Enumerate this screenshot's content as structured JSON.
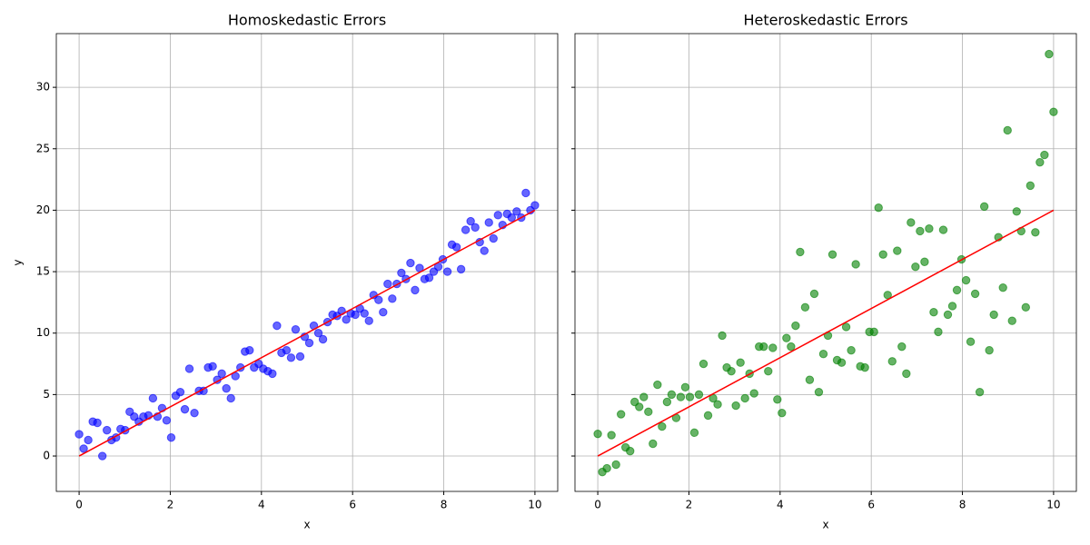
{
  "chart_data": [
    {
      "type": "scatter",
      "title": "Homoskedastic Errors",
      "xlabel": "x",
      "ylabel": "y",
      "xlim": [
        -0.5,
        10.5
      ],
      "ylim": [
        -2.88,
        34.37
      ],
      "xticks": [
        0,
        2,
        4,
        6,
        8,
        10
      ],
      "yticks": [
        0,
        5,
        10,
        15,
        20,
        25,
        30
      ],
      "grid": true,
      "ytick_labels": true,
      "points": {
        "color": "#0000ff",
        "alpha": 0.6,
        "x": [
          0,
          0.1,
          0.2,
          0.3,
          0.4,
          0.51,
          0.61,
          0.71,
          0.81,
          0.91,
          1.01,
          1.11,
          1.21,
          1.31,
          1.41,
          1.52,
          1.62,
          1.72,
          1.82,
          1.92,
          2.02,
          2.12,
          2.22,
          2.32,
          2.42,
          2.53,
          2.63,
          2.73,
          2.83,
          2.93,
          3.03,
          3.13,
          3.23,
          3.33,
          3.43,
          3.54,
          3.64,
          3.74,
          3.84,
          3.94,
          4.04,
          4.14,
          4.24,
          4.34,
          4.44,
          4.55,
          4.65,
          4.75,
          4.85,
          4.95,
          5.05,
          5.15,
          5.25,
          5.35,
          5.45,
          5.56,
          5.66,
          5.76,
          5.86,
          5.96,
          6.06,
          6.16,
          6.26,
          6.36,
          6.46,
          6.57,
          6.67,
          6.77,
          6.87,
          6.97,
          7.07,
          7.17,
          7.27,
          7.37,
          7.47,
          7.58,
          7.68,
          7.78,
          7.88,
          7.98,
          8.08,
          8.18,
          8.28,
          8.38,
          8.48,
          8.59,
          8.69,
          8.79,
          8.89,
          8.99,
          9.09,
          9.19,
          9.29,
          9.39,
          9.49,
          9.6,
          9.7,
          9.8,
          9.9,
          10
        ],
        "y": [
          1.77,
          0.6,
          1.3,
          2.8,
          2.7,
          0.0,
          2.1,
          1.3,
          1.5,
          2.2,
          2.1,
          3.6,
          3.2,
          2.8,
          3.2,
          3.3,
          4.7,
          3.2,
          3.9,
          2.9,
          1.5,
          4.9,
          5.2,
          3.8,
          7.1,
          3.5,
          5.3,
          5.3,
          7.2,
          7.3,
          6.2,
          6.7,
          5.5,
          4.7,
          6.5,
          7.2,
          8.5,
          8.6,
          7.2,
          7.5,
          7.1,
          6.9,
          6.7,
          10.6,
          8.4,
          8.6,
          8.0,
          10.3,
          8.1,
          9.7,
          9.2,
          10.6,
          10.0,
          9.5,
          10.9,
          11.5,
          11.4,
          11.8,
          11.1,
          11.6,
          11.5,
          12.0,
          11.6,
          11.0,
          13.1,
          12.7,
          11.7,
          14.0,
          12.8,
          14.0,
          14.9,
          14.4,
          15.7,
          13.5,
          15.3,
          14.4,
          14.5,
          15.0,
          15.4,
          16.0,
          15.0,
          17.2,
          17.0,
          15.2,
          18.4,
          19.1,
          18.6,
          17.4,
          16.7,
          19.0,
          17.7,
          19.6,
          18.8,
          19.7,
          19.4,
          19.9,
          19.4,
          21.4,
          20.0,
          20.4
        ]
      },
      "line": {
        "color": "#ff0000",
        "x": [
          0,
          10
        ],
        "y": [
          0,
          20
        ]
      }
    },
    {
      "type": "scatter",
      "title": "Heteroskedastic Errors",
      "xlabel": "x",
      "xlim": [
        -0.5,
        10.5
      ],
      "ylim": [
        -2.88,
        34.37
      ],
      "xticks": [
        0,
        2,
        4,
        6,
        8,
        10
      ],
      "yticks": [
        0,
        5,
        10,
        15,
        20,
        25,
        30
      ],
      "grid": true,
      "ytick_labels": false,
      "points": {
        "color": "#008000",
        "alpha": 0.6,
        "x": [
          0,
          0.1,
          0.2,
          0.3,
          0.4,
          0.51,
          0.61,
          0.71,
          0.81,
          0.91,
          1.01,
          1.11,
          1.21,
          1.31,
          1.41,
          1.52,
          1.62,
          1.72,
          1.82,
          1.92,
          2.02,
          2.12,
          2.22,
          2.32,
          2.42,
          2.53,
          2.63,
          2.73,
          2.83,
          2.93,
          3.03,
          3.13,
          3.23,
          3.33,
          3.43,
          3.54,
          3.64,
          3.74,
          3.84,
          3.94,
          4.04,
          4.14,
          4.24,
          4.34,
          4.44,
          4.55,
          4.65,
          4.75,
          4.85,
          4.95,
          5.05,
          5.15,
          5.25,
          5.35,
          5.45,
          5.56,
          5.66,
          5.76,
          5.86,
          5.96,
          6.06,
          6.16,
          6.26,
          6.36,
          6.46,
          6.57,
          6.67,
          6.77,
          6.87,
          6.97,
          7.07,
          7.17,
          7.27,
          7.37,
          7.47,
          7.58,
          7.68,
          7.78,
          7.88,
          7.98,
          8.08,
          8.18,
          8.28,
          8.38,
          8.48,
          8.59,
          8.69,
          8.79,
          8.89,
          8.99,
          9.09,
          9.19,
          9.29,
          9.39,
          9.49,
          9.6,
          9.7,
          9.8,
          9.9,
          10
        ],
        "y": [
          1.8,
          -1.3,
          -1.0,
          1.7,
          -0.7,
          3.4,
          0.7,
          0.4,
          4.4,
          4.0,
          4.8,
          3.6,
          1.0,
          5.8,
          2.4,
          4.4,
          5.0,
          3.1,
          4.8,
          5.6,
          4.8,
          1.9,
          5.0,
          7.5,
          3.3,
          4.7,
          4.2,
          9.8,
          7.2,
          6.9,
          4.1,
          7.6,
          4.7,
          6.7,
          5.1,
          8.9,
          8.9,
          6.9,
          8.8,
          4.6,
          3.5,
          9.6,
          8.9,
          10.6,
          16.6,
          12.1,
          6.2,
          13.2,
          5.2,
          8.3,
          9.8,
          16.4,
          7.8,
          7.6,
          10.5,
          8.6,
          15.6,
          7.3,
          7.2,
          10.1,
          10.1,
          20.2,
          16.4,
          13.1,
          7.7,
          16.7,
          8.9,
          6.7,
          19.0,
          15.4,
          18.3,
          15.8,
          18.5,
          11.7,
          10.1,
          18.4,
          11.5,
          12.2,
          13.5,
          16.0,
          14.3,
          9.3,
          13.2,
          5.2,
          20.3,
          8.6,
          11.5,
          17.8,
          13.7,
          26.5,
          11.0,
          19.9,
          18.3,
          12.1,
          22.0,
          18.2,
          23.9,
          24.5,
          32.7,
          28.0
        ]
      },
      "line": {
        "color": "#ff0000",
        "x": [
          0,
          10
        ],
        "y": [
          0,
          20
        ]
      }
    }
  ]
}
